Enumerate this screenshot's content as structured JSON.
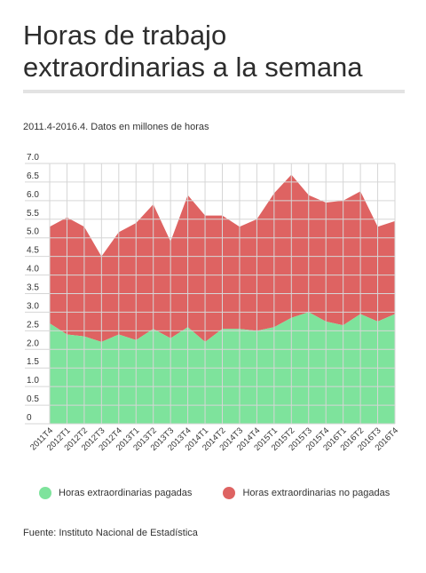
{
  "title": "Horas de trabajo extraordinarias a la semana",
  "subtitle": "2011.4-2016.4. Datos en millones de horas",
  "source": "Fuente: Instituto Nacional de Estadística",
  "colors": {
    "paid": "#7ee39c",
    "unpaid": "#de6362",
    "grid": "#d6d6d6"
  },
  "chart_data": {
    "type": "area",
    "stacked": true,
    "categories": [
      "2011T4",
      "2012T1",
      "2012T2",
      "2012T3",
      "2012T4",
      "2013T1",
      "2013T2",
      "2013T3",
      "2013T4",
      "2014T1",
      "2014T2",
      "2014T3",
      "2014T4",
      "2015T1",
      "2015T2",
      "2015T3",
      "2015T4",
      "2016T1",
      "2016T2",
      "2016T3",
      "2016T4"
    ],
    "ylim": [
      0,
      7.0
    ],
    "yticks": [
      "0",
      "0.5",
      "1.0",
      "1.5",
      "2.0",
      "2.5",
      "3.0",
      "3.5",
      "4.0",
      "4.5",
      "5.0",
      "5.5",
      "6.0",
      "6.5",
      "7.0"
    ],
    "grid": true,
    "legend_position": "bottom",
    "series": [
      {
        "name": "Horas extraordinarias pagadas",
        "values": [
          2.7,
          2.4,
          2.35,
          2.2,
          2.4,
          2.25,
          2.55,
          2.3,
          2.6,
          2.2,
          2.55,
          2.55,
          2.5,
          2.6,
          2.85,
          3.0,
          2.75,
          2.65,
          2.95,
          2.75,
          2.95
        ]
      },
      {
        "name": "Horas extraordinarias no pagadas",
        "values": [
          2.6,
          3.15,
          2.95,
          2.3,
          2.75,
          3.15,
          3.35,
          2.6,
          3.55,
          3.4,
          3.05,
          2.75,
          3.0,
          3.6,
          3.85,
          3.15,
          3.2,
          3.35,
          3.3,
          2.55,
          2.5
        ]
      }
    ]
  }
}
